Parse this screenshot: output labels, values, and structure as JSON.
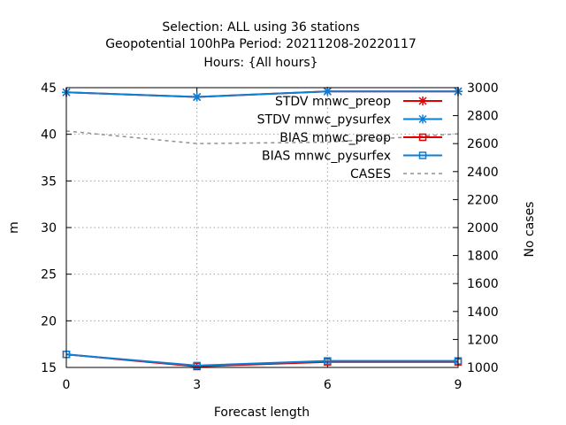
{
  "chart_data": {
    "type": "line",
    "title_lines": [
      "Selection: ALL using    36 stations",
      "Geopotential 100hPa   Period: 20211208-20220117",
      "Hours: {All hours}"
    ],
    "xlabel": "Forecast length",
    "ylabel": "m",
    "y2label": "No cases",
    "x": [
      0,
      3,
      6,
      9
    ],
    "xlim": [
      0,
      9
    ],
    "xticks": [
      0,
      3,
      6,
      9
    ],
    "ylim": [
      15,
      45
    ],
    "yticks": [
      15,
      20,
      25,
      30,
      35,
      40,
      45
    ],
    "y2lim": [
      1000,
      3000
    ],
    "y2ticks": [
      1000,
      1200,
      1400,
      1600,
      1800,
      2000,
      2200,
      2400,
      2600,
      2800,
      3000
    ],
    "grid": true,
    "legend_position": "top-right",
    "series": [
      {
        "name": "STDV mnwc_preop",
        "axis": "y",
        "color": "#e00000",
        "marker": "star",
        "dash": false,
        "values": [
          44.5,
          44.0,
          44.6,
          44.6
        ]
      },
      {
        "name": "STDV mnwc_pysurfex",
        "axis": "y",
        "color": "#0a7fd6",
        "marker": "star",
        "dash": false,
        "values": [
          44.5,
          44.0,
          44.6,
          44.6
        ]
      },
      {
        "name": "BIAS mnwc_preop",
        "axis": "y",
        "color": "#e00000",
        "marker": "square",
        "dash": false,
        "values": [
          16.4,
          15.1,
          15.6,
          15.6
        ]
      },
      {
        "name": "BIAS mnwc_pysurfex",
        "axis": "y",
        "color": "#0a7fd6",
        "marker": "square",
        "dash": false,
        "values": [
          16.4,
          15.2,
          15.7,
          15.7
        ]
      },
      {
        "name": "CASES",
        "axis": "y2",
        "color": "#909090",
        "marker": "none",
        "dash": true,
        "values": [
          2690,
          2600,
          2610,
          2670
        ]
      }
    ]
  }
}
